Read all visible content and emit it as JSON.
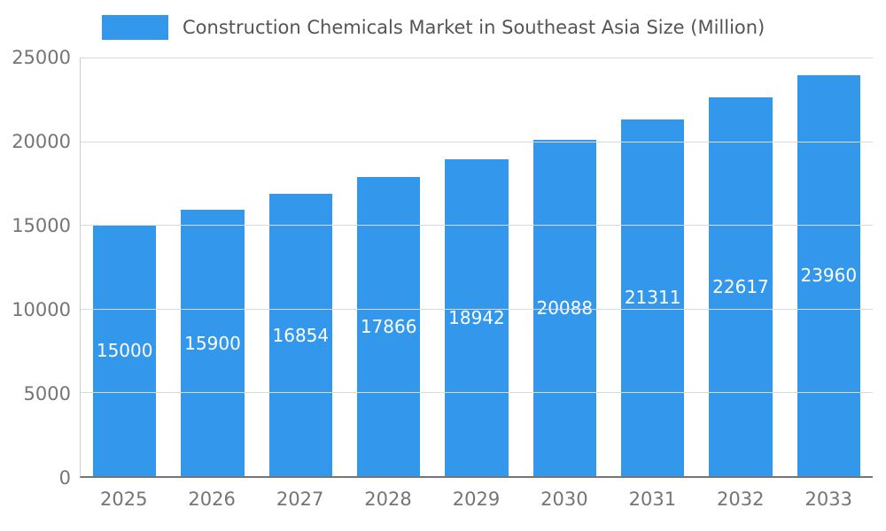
{
  "chart_data": {
    "type": "bar",
    "title": "Construction Chemicals Market in Southeast Asia Size (Million)",
    "categories": [
      "2025",
      "2026",
      "2027",
      "2028",
      "2029",
      "2030",
      "2031",
      "2032",
      "2033"
    ],
    "values": [
      15000,
      15900,
      16854,
      17866,
      18942,
      20088,
      21311,
      22617,
      23960
    ],
    "xlabel": "",
    "ylabel": "",
    "ylim": [
      0,
      25000
    ],
    "yticks": [
      0,
      5000,
      10000,
      15000,
      20000,
      25000
    ],
    "grid": true,
    "legend_position": "top",
    "bar_color": "#3398EC",
    "value_label_color": "#ffffff",
    "axis_text_color": "#757575",
    "title_color": "#555555"
  }
}
